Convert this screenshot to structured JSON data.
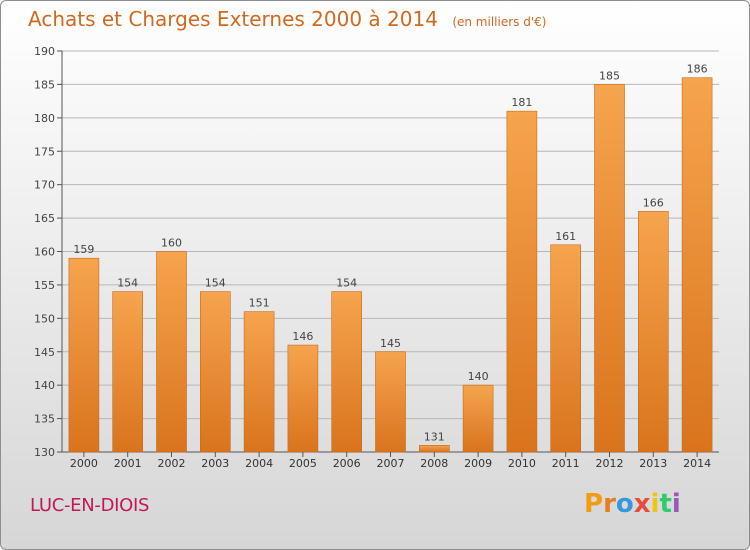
{
  "header": {
    "title": "Achats et Charges Externes 2000 à 2014",
    "unit": "(en milliers d'€)"
  },
  "footer": {
    "town": "LUC-EN-DIOIS",
    "logo": "Proxiti"
  },
  "colors": {
    "title": "#d2691e",
    "town": "#c2185b",
    "bar_top": "#f6a44e",
    "bar_bottom": "#d9741d",
    "grid": "#b7b7b7"
  },
  "chart_data": {
    "type": "bar",
    "title": "Achats et Charges Externes 2000 à 2014",
    "categories": [
      "2000",
      "2001",
      "2002",
      "2003",
      "2004",
      "2005",
      "2006",
      "2007",
      "2008",
      "2009",
      "2010",
      "2011",
      "2012",
      "2013",
      "2014"
    ],
    "values": [
      159,
      154,
      160,
      154,
      151,
      146,
      154,
      145,
      131,
      140,
      181,
      161,
      185,
      166,
      186
    ],
    "ylim": [
      130,
      190
    ],
    "yticks": [
      130,
      135,
      140,
      145,
      150,
      155,
      160,
      165,
      170,
      175,
      180,
      185,
      190
    ],
    "grid": true,
    "xlabel": "",
    "ylabel": ""
  }
}
